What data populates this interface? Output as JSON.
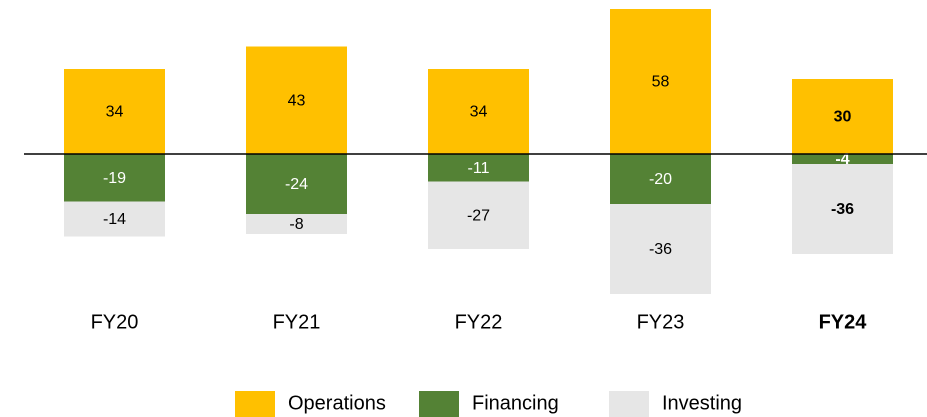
{
  "chart_data": {
    "type": "bar",
    "stacked": true,
    "categories": [
      "FY20",
      "FY21",
      "FY22",
      "FY23",
      "FY24"
    ],
    "series": [
      {
        "name": "Operations",
        "color": "#ffc000",
        "values": [
          34,
          43,
          34,
          58,
          30
        ]
      },
      {
        "name": "Financing",
        "color": "#548235",
        "values": [
          -19,
          -24,
          -11,
          -20,
          -4
        ]
      },
      {
        "name": "Investing",
        "color": "#e6e6e6",
        "values": [
          -14,
          -8,
          -27,
          -36,
          -36
        ]
      }
    ],
    "ylim": [
      -60,
      60
    ],
    "legend": "bottom"
  }
}
